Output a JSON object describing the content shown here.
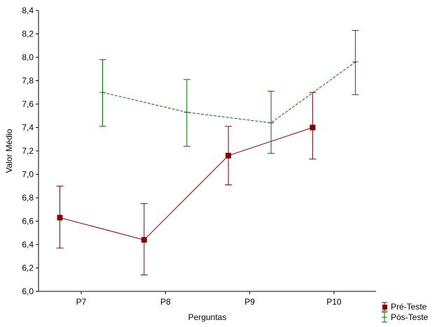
{
  "chart_data": {
    "type": "line",
    "title": "",
    "xlabel": "Perguntas",
    "ylabel": "Valor Médio",
    "ylim": [
      6.0,
      8.4
    ],
    "yticks": [
      "6,0",
      "6,2",
      "6,4",
      "6,6",
      "6,8",
      "7,0",
      "7,2",
      "7,4",
      "7,6",
      "7,8",
      "8,0",
      "8,2",
      "8,4"
    ],
    "categories": [
      "P7",
      "P8",
      "P9",
      "P10"
    ],
    "legend_position": "bottom-right",
    "series": [
      {
        "name": "Pré-Teste",
        "color": "#800000",
        "style": "solid",
        "marker": "square",
        "values": [
          6.63,
          6.44,
          7.16,
          7.4
        ],
        "upper": [
          6.9,
          6.75,
          7.41,
          7.7
        ],
        "lower": [
          6.37,
          6.14,
          6.91,
          7.13
        ]
      },
      {
        "name": "Pós-Teste",
        "color": "#007000",
        "style": "dashed",
        "marker": "none",
        "values": [
          7.7,
          7.53,
          7.44,
          7.96
        ],
        "upper": [
          7.98,
          7.81,
          7.71,
          8.23
        ],
        "lower": [
          7.41,
          7.24,
          7.18,
          7.68
        ]
      }
    ]
  }
}
